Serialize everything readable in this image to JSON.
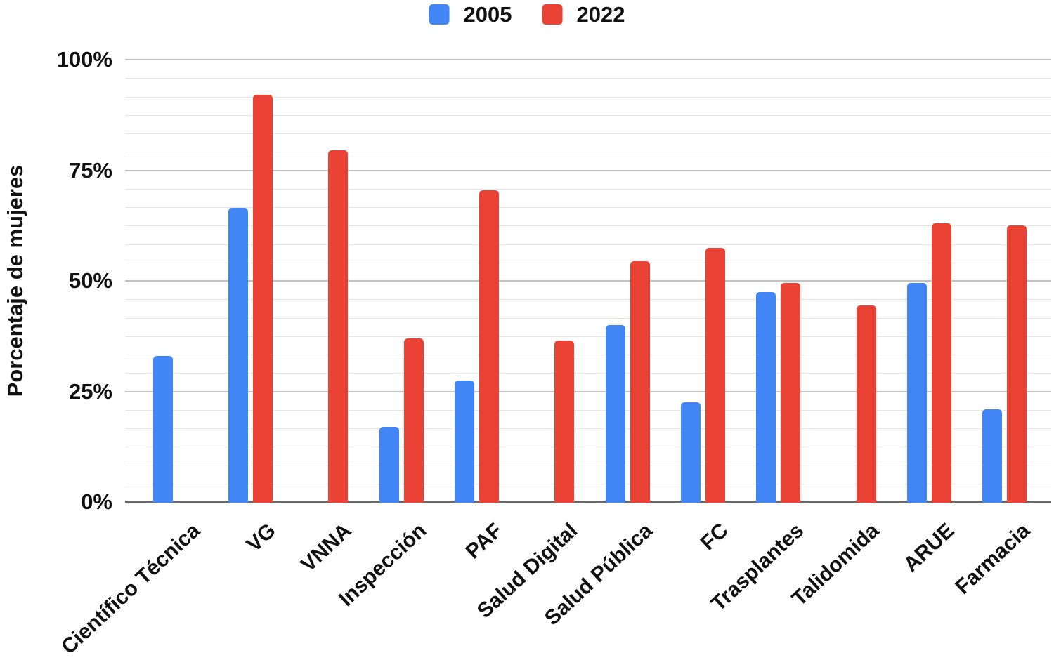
{
  "legend": {
    "items": [
      {
        "label": "2005",
        "color": "#4285F4"
      },
      {
        "label": "2022",
        "color": "#EA4335"
      }
    ]
  },
  "chart_data": {
    "type": "bar",
    "title": "",
    "xlabel": "",
    "ylabel": "Porcentaje de mujeres",
    "ylim": [
      0,
      100
    ],
    "grid": true,
    "legend_position": "top-center",
    "yticks": [
      {
        "value": 100,
        "label": "100%"
      },
      {
        "value": 75,
        "label": "75%"
      },
      {
        "value": 50,
        "label": "50%"
      },
      {
        "value": 25,
        "label": "25%"
      },
      {
        "value": 0,
        "label": "0%"
      }
    ],
    "minor_gridlines_between_majors": 5,
    "categories": [
      "Científico Técnica",
      "VG",
      "VNNA",
      "Inspección",
      "PAF",
      "Salud Digital",
      "Salud Pública",
      "FC",
      "Trasplantes",
      "Talidomida",
      "ARUE",
      "Farmacia"
    ],
    "series": [
      {
        "name": "2005",
        "color": "#4285F4",
        "values": [
          33,
          66.5,
          null,
          17,
          27.5,
          null,
          40,
          22.5,
          47.5,
          null,
          49.5,
          21
        ]
      },
      {
        "name": "2022",
        "color": "#EA4335",
        "values": [
          null,
          92,
          79.5,
          37,
          70.5,
          36.5,
          54.5,
          57.5,
          49.5,
          44.5,
          63,
          62.5
        ]
      }
    ]
  }
}
